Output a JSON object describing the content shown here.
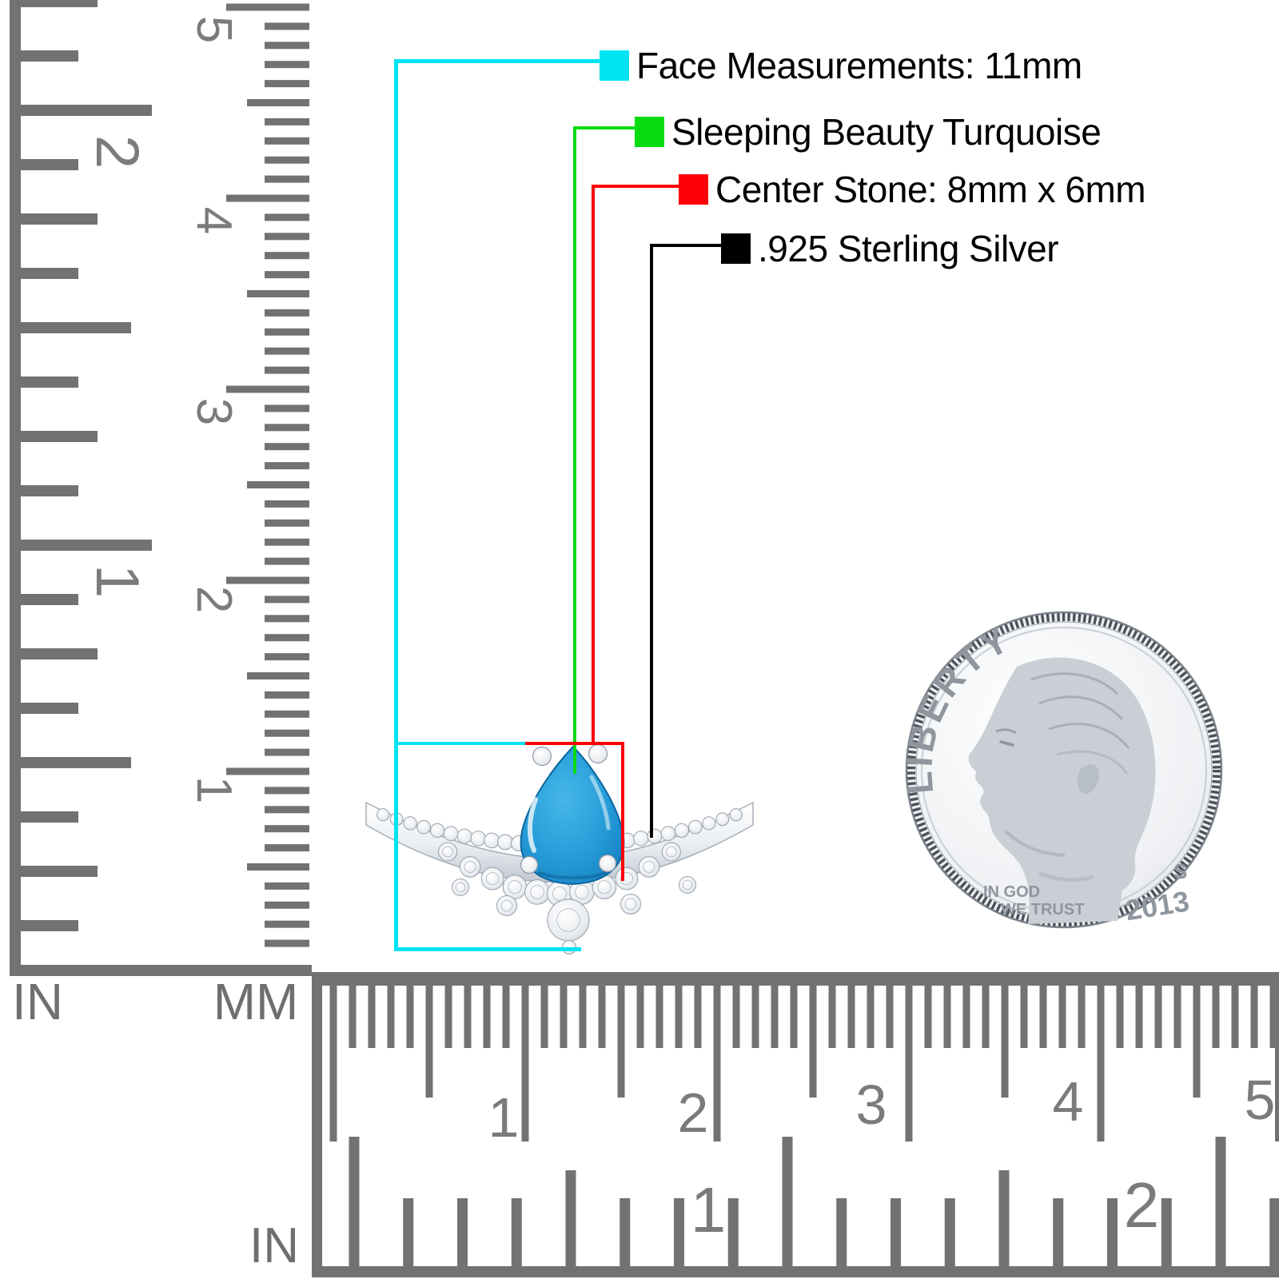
{
  "annotations": {
    "items": [
      {
        "name": "face-measurements",
        "swatch_color": "#00E4F2",
        "label": "Face Measurements: 11mm"
      },
      {
        "name": "stone-type",
        "swatch_color": "#07DC11",
        "label": "Sleeping Beauty Turquoise"
      },
      {
        "name": "center-stone",
        "swatch_color": "#FB0006",
        "label": "Center Stone: 8mm x 6mm"
      },
      {
        "name": "metal",
        "swatch_color": "#000000",
        "label": ".925 Sterling Silver"
      }
    ]
  },
  "left_ruler": {
    "cm_numbers": [
      "5",
      "4",
      "3",
      "2",
      "1"
    ],
    "inch_numbers": [
      "2",
      "1"
    ],
    "in_unit": "IN",
    "mm_unit": "MM"
  },
  "bottom_ruler": {
    "cm_numbers": [
      "1",
      "2",
      "3",
      "4",
      "5"
    ],
    "inch_numbers": [
      "1",
      "2"
    ],
    "in_unit": "IN"
  },
  "coin": {
    "liberty": "LIBERTY",
    "motto_line1": "IN GOD",
    "motto_line2": "WE TRUST",
    "mint_mark": "S",
    "year": "2013"
  },
  "colors": {
    "cyan": "#00E4F2",
    "green": "#07DC11",
    "red": "#FB0006",
    "black": "#000000",
    "ruler_gray": "#727272",
    "turquoise": "#2B9FD8",
    "silver": "#C9CFD5"
  }
}
